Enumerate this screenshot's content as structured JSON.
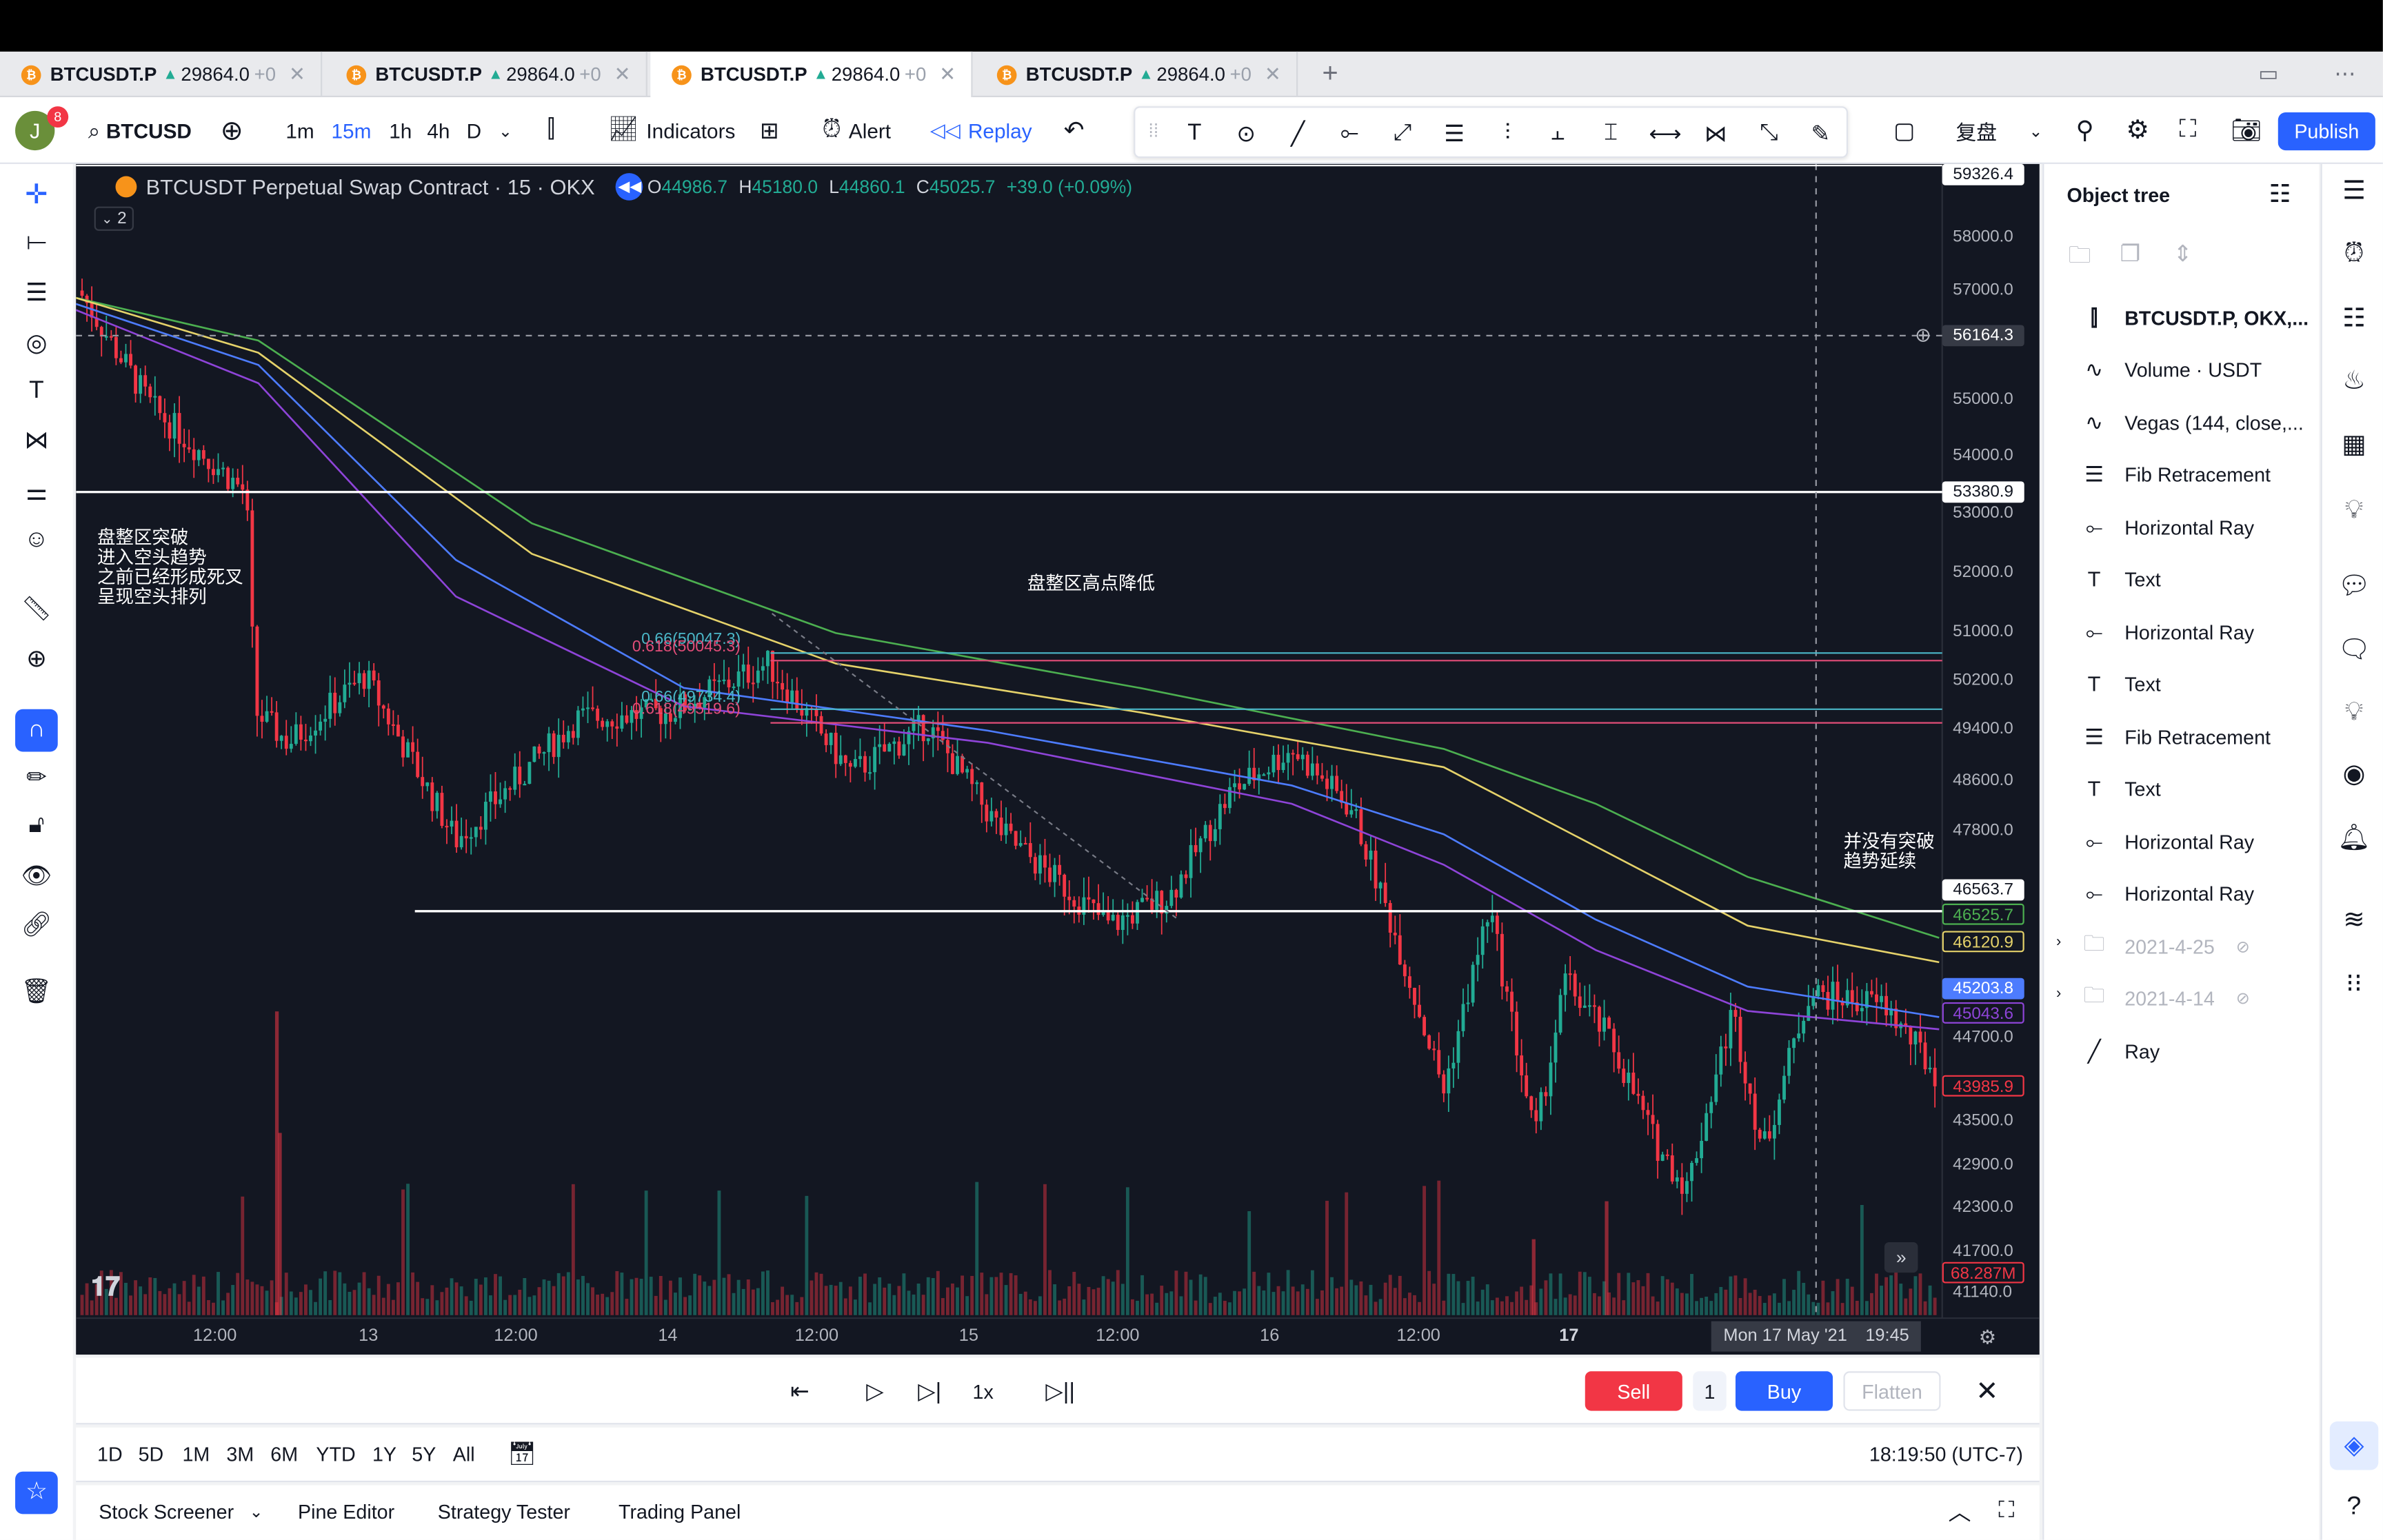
{
  "tabs": [
    {
      "symbol": "BTCUSDT.P",
      "price": "29864.0",
      "change": "+0"
    },
    {
      "symbol": "BTCUSDT.P",
      "price": "29864.0",
      "change": "+0"
    },
    {
      "symbol": "BTCUSDT.P",
      "price": "29864.0",
      "change": "+0"
    },
    {
      "symbol": "BTCUSDT.P",
      "price": "29864.0",
      "change": "+0"
    }
  ],
  "toolbar": {
    "avatar_letter": "J",
    "notif_count": "8",
    "symbol": "BTCUSD",
    "intervals": [
      "1m",
      "15m",
      "1h",
      "4h",
      "D"
    ],
    "indicators_label": "Indicators",
    "alert_label": "Alert",
    "replay_label": "Replay",
    "restore_label": "复盘",
    "publish_label": "Publish"
  },
  "chart": {
    "title": "BTCUSDT Perpetual Swap Contract · 15 · OKX",
    "ohlc": {
      "o": "44986.7",
      "h": "45180.0",
      "l": "44860.1",
      "c": "45025.7",
      "change": "+39.0 (+0.09%)"
    },
    "legend_count": "2",
    "price_axis": [
      "58000.0",
      "57000.0",
      "55000.0",
      "54000.0",
      "53000.0",
      "52000.0",
      "51000.0",
      "50200.0",
      "49400.0",
      "48600.0",
      "47800.0",
      "44700.0",
      "43500.0",
      "42900.0",
      "42300.0",
      "41700.0",
      "41140.0"
    ],
    "price_tags": {
      "top": "59326.4",
      "cross": "56164.3",
      "resist": "53380.9",
      "support": "46563.7",
      "ema_green": "46525.7",
      "ema_yellow": "46120.9",
      "ema_blue": "45203.8",
      "ema_purple": "45043.6",
      "last": "43985.9",
      "volume": "68.287M"
    },
    "time_axis": [
      "12:00",
      "13",
      "12:00",
      "14",
      "12:00",
      "15",
      "12:00",
      "16",
      "12:00",
      "17"
    ],
    "crosshair_time": "Mon 17 May '21",
    "crosshair_clock": "19:45",
    "annotations": {
      "left": "盘整区突破\n进入空头趋势\n之前已经形成死叉\n呈现空头排列",
      "mid": "盘整区高点降低",
      "right": "并没有突破\n趋势延续"
    },
    "fib_labels": {
      "a1": "0.66(50047.3)",
      "a2": "0.618(50045.3)",
      "b1": "0.66(49734.4)",
      "b2": "0.618(49519.6)"
    },
    "colors": {
      "background": "#131722",
      "up": "#22ab94",
      "down": "#f23645",
      "ema_green": "#4caf50",
      "ema_yellow": "#e5d26a",
      "ema_blue": "#4d7cfe",
      "ema_purple": "#8e44d8"
    }
  },
  "replay": {
    "speed": "1x",
    "sell_label": "Sell",
    "qty": "1",
    "buy_label": "Buy",
    "flatten_label": "Flatten"
  },
  "ranges": [
    "1D",
    "5D",
    "1M",
    "3M",
    "6M",
    "YTD",
    "1Y",
    "5Y",
    "All"
  ],
  "clock": "18:19:50 (UTC-7)",
  "bottom_tabs": [
    "Stock Screener",
    "Pine Editor",
    "Strategy Tester",
    "Trading Panel"
  ],
  "object_tree": {
    "title": "Object tree",
    "items": [
      {
        "label": "BTCUSDT.P, OKX,...",
        "icon": "candles-icon"
      },
      {
        "label": "Volume · USDT",
        "icon": "wave-icon"
      },
      {
        "label": "Vegas (144, close,...",
        "icon": "wave-icon"
      },
      {
        "label": "Fib Retracement",
        "icon": "fib-icon"
      },
      {
        "label": "Horizontal Ray",
        "icon": "ray-icon"
      },
      {
        "label": "Text",
        "icon": "text-icon"
      },
      {
        "label": "Horizontal Ray",
        "icon": "ray-icon"
      },
      {
        "label": "Text",
        "icon": "text-icon"
      },
      {
        "label": "Fib Retracement",
        "icon": "fib-icon"
      },
      {
        "label": "Text",
        "icon": "text-icon"
      },
      {
        "label": "Horizontal Ray",
        "icon": "ray-icon"
      },
      {
        "label": "Horizontal Ray",
        "icon": "ray-icon"
      },
      {
        "label": "2021-4-25",
        "icon": "folder-icon"
      },
      {
        "label": "2021-4-14",
        "icon": "folder-icon"
      },
      {
        "label": "Ray",
        "icon": "trend-ray-icon"
      }
    ]
  }
}
